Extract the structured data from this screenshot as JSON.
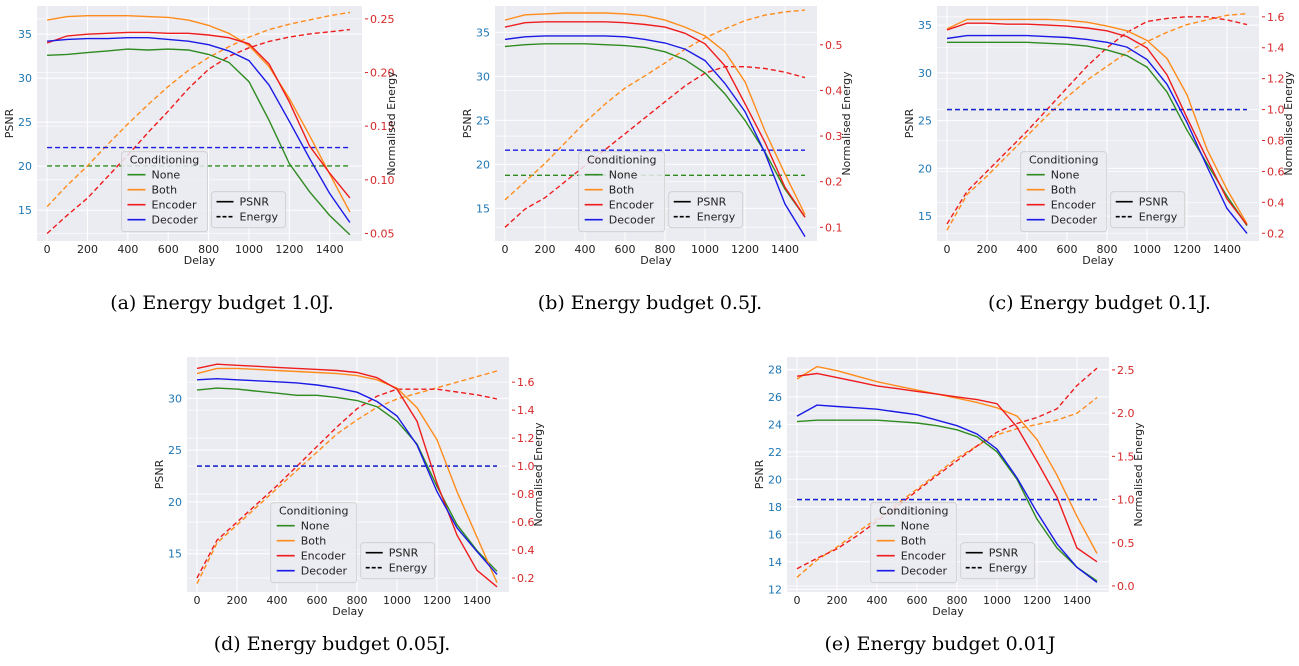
{
  "colors": {
    "None": "#2e8b20",
    "Both": "#ff8c1a",
    "Encoder": "#ee1c1c",
    "Decoder": "#1a1ae6",
    "psnr_axis": "#1f77b4",
    "energy_axis": "#d62728",
    "plot_bg": "#ebebf2",
    "grid": "#ffffff"
  },
  "legend": {
    "title": "Conditioning",
    "series": [
      "None",
      "Both",
      "Encoder",
      "Decoder"
    ],
    "styles": [
      "PSNR",
      "Energy"
    ]
  },
  "chart_data": [
    {
      "id": "a",
      "type": "line",
      "caption": "(a) Energy budget 1.0J.",
      "xlabel": "Delay",
      "ylabel": "PSNR",
      "y2label": "Normalised Energy",
      "xlim": [
        -50,
        1560
      ],
      "ylim": [
        11.5,
        38.2
      ],
      "y2lim": [
        0.043,
        0.262
      ],
      "xticks": [
        0,
        200,
        400,
        600,
        800,
        1000,
        1200,
        1400
      ],
      "yticks": [
        15,
        20,
        25,
        30,
        35
      ],
      "y2ticks": [
        0.05,
        0.1,
        0.15,
        0.2,
        0.25
      ],
      "y2ticklabels": [
        "0.05",
        "0.10",
        "0.15",
        "0.20",
        "0.25"
      ],
      "x": [
        0,
        100,
        200,
        300,
        400,
        500,
        600,
        700,
        800,
        900,
        1000,
        1100,
        1200,
        1300,
        1400,
        1500
      ],
      "psnr": {
        "None": [
          32.6,
          32.7,
          32.9,
          33.1,
          33.3,
          33.2,
          33.3,
          33.2,
          32.7,
          31.8,
          29.6,
          25.2,
          20.3,
          17.1,
          14.4,
          12.2
        ],
        "Both": [
          36.6,
          37.0,
          37.1,
          37.1,
          37.1,
          37.0,
          36.9,
          36.6,
          36.0,
          35.1,
          33.7,
          31.3,
          27.7,
          23.5,
          19.1,
          14.8
        ],
        "Encoder": [
          34.0,
          34.8,
          35.0,
          35.1,
          35.2,
          35.2,
          35.1,
          35.1,
          34.9,
          34.6,
          33.9,
          31.6,
          27.3,
          22.3,
          19.2,
          16.4
        ],
        "Decoder": [
          34.2,
          34.4,
          34.5,
          34.5,
          34.6,
          34.6,
          34.4,
          34.2,
          33.8,
          33.1,
          32.0,
          29.2,
          25.1,
          20.9,
          16.9,
          13.6
        ]
      },
      "energy": {
        "None": [
          0.113,
          0.113,
          0.113,
          0.113,
          0.113,
          0.113,
          0.113,
          0.113,
          0.113,
          0.113,
          0.113,
          0.113,
          0.113,
          0.113,
          0.113,
          0.113
        ],
        "Both": [
          0.075,
          0.095,
          0.113,
          0.133,
          0.152,
          0.17,
          0.187,
          0.202,
          0.214,
          0.224,
          0.233,
          0.24,
          0.245,
          0.249,
          0.253,
          0.256
        ],
        "Encoder": [
          0.05,
          0.067,
          0.083,
          0.103,
          0.123,
          0.144,
          0.164,
          0.185,
          0.203,
          0.215,
          0.223,
          0.229,
          0.233,
          0.236,
          0.238,
          0.24
        ],
        "Decoder": [
          0.13,
          0.13,
          0.13,
          0.13,
          0.13,
          0.13,
          0.13,
          0.13,
          0.13,
          0.13,
          0.13,
          0.13,
          0.13,
          0.13,
          0.13,
          0.13
        ]
      }
    },
    {
      "id": "b",
      "type": "line",
      "caption": "(b) Energy budget 0.5J.",
      "xlabel": "Delay",
      "ylabel": "PSNR",
      "y2label": "Normalised Energy",
      "xlim": [
        -50,
        1560
      ],
      "ylim": [
        11.3,
        38.0
      ],
      "y2lim": [
        0.07,
        0.585
      ],
      "xticks": [
        0,
        200,
        400,
        600,
        800,
        1000,
        1200,
        1400
      ],
      "yticks": [
        15,
        20,
        25,
        30,
        35
      ],
      "y2ticks": [
        0.1,
        0.2,
        0.3,
        0.4,
        0.5
      ],
      "y2ticklabels": [
        "0.1",
        "0.2",
        "0.3",
        "0.4",
        "0.5"
      ],
      "x": [
        0,
        100,
        200,
        300,
        400,
        500,
        600,
        700,
        800,
        900,
        1000,
        1100,
        1200,
        1300,
        1400,
        1500
      ],
      "psnr": {
        "None": [
          33.4,
          33.6,
          33.7,
          33.7,
          33.7,
          33.6,
          33.5,
          33.3,
          32.8,
          31.9,
          30.4,
          28.0,
          25.0,
          21.4,
          17.2,
          14.0
        ],
        "Both": [
          36.4,
          37.0,
          37.1,
          37.2,
          37.2,
          37.2,
          37.1,
          36.9,
          36.4,
          35.6,
          34.6,
          32.8,
          29.4,
          23.8,
          18.9,
          14.3
        ],
        "Encoder": [
          35.6,
          36.1,
          36.2,
          36.2,
          36.2,
          36.2,
          36.1,
          35.9,
          35.6,
          34.9,
          33.7,
          31.2,
          26.9,
          22.5,
          17.4,
          14.0
        ],
        "Decoder": [
          34.2,
          34.5,
          34.6,
          34.6,
          34.6,
          34.6,
          34.5,
          34.2,
          33.8,
          33.1,
          31.8,
          29.2,
          26.0,
          21.3,
          15.5,
          11.8
        ]
      },
      "energy": {
        "None": [
          0.214,
          0.214,
          0.214,
          0.214,
          0.214,
          0.214,
          0.214,
          0.214,
          0.214,
          0.214,
          0.214,
          0.214,
          0.214,
          0.214,
          0.214,
          0.214
        ],
        "Both": [
          0.16,
          0.2,
          0.24,
          0.285,
          0.33,
          0.37,
          0.405,
          0.432,
          0.46,
          0.49,
          0.515,
          0.535,
          0.553,
          0.565,
          0.572,
          0.576
        ],
        "Encoder": [
          0.1,
          0.14,
          0.165,
          0.2,
          0.235,
          0.27,
          0.305,
          0.34,
          0.375,
          0.41,
          0.438,
          0.452,
          0.452,
          0.448,
          0.44,
          0.428
        ],
        "Decoder": [
          0.269,
          0.269,
          0.269,
          0.269,
          0.269,
          0.269,
          0.269,
          0.269,
          0.269,
          0.269,
          0.269,
          0.269,
          0.269,
          0.269,
          0.269,
          0.269
        ]
      }
    },
    {
      "id": "c",
      "type": "line",
      "caption": "(c) Energy budget 0.1J.",
      "xlabel": "Delay",
      "ylabel": "PSNR",
      "y2label": "Normalised Energy",
      "xlim": [
        -50,
        1560
      ],
      "ylim": [
        12.4,
        37.0
      ],
      "y2lim": [
        0.15,
        1.67
      ],
      "xticks": [
        0,
        200,
        400,
        600,
        800,
        1000,
        1200,
        1400
      ],
      "yticks": [
        15,
        20,
        25,
        30,
        35
      ],
      "y2ticks": [
        0.2,
        0.4,
        0.6,
        0.8,
        1.0,
        1.2,
        1.4,
        1.6
      ],
      "y2ticklabels": [
        "0.2",
        "0.4",
        "0.6",
        "0.8",
        "1.0",
        "1.2",
        "1.4",
        "1.6"
      ],
      "x": [
        0,
        100,
        200,
        300,
        400,
        500,
        600,
        700,
        800,
        900,
        1000,
        1100,
        1200,
        1300,
        1400,
        1500
      ],
      "psnr": {
        "None": [
          33.2,
          33.2,
          33.2,
          33.2,
          33.2,
          33.1,
          33.0,
          32.8,
          32.4,
          31.8,
          30.6,
          28.0,
          24.0,
          20.5,
          17.1,
          14.0
        ],
        "Both": [
          34.6,
          35.6,
          35.6,
          35.6,
          35.6,
          35.6,
          35.5,
          35.3,
          34.9,
          34.4,
          33.4,
          31.5,
          27.7,
          22.0,
          17.8,
          14.2
        ],
        "Encoder": [
          34.5,
          35.2,
          35.2,
          35.1,
          35.1,
          35.0,
          34.9,
          34.7,
          34.4,
          33.8,
          32.6,
          29.8,
          25.3,
          21.0,
          16.8,
          14.1
        ],
        "Decoder": [
          33.6,
          33.9,
          33.9,
          33.9,
          33.9,
          33.8,
          33.7,
          33.5,
          33.2,
          32.7,
          31.4,
          28.8,
          24.8,
          20.2,
          15.8,
          13.2
        ]
      },
      "energy": {
        "None": [
          1.0,
          1.0,
          1.0,
          1.0,
          1.0,
          1.0,
          1.0,
          1.0,
          1.0,
          1.0,
          1.0,
          1.0,
          1.0,
          1.0,
          1.0,
          1.0
        ],
        "Both": [
          0.22,
          0.45,
          0.57,
          0.7,
          0.83,
          0.96,
          1.08,
          1.19,
          1.28,
          1.37,
          1.44,
          1.5,
          1.55,
          1.58,
          1.61,
          1.62
        ],
        "Encoder": [
          0.26,
          0.47,
          0.6,
          0.73,
          0.86,
          1.0,
          1.14,
          1.28,
          1.4,
          1.5,
          1.57,
          1.59,
          1.6,
          1.6,
          1.58,
          1.55
        ],
        "Decoder": [
          1.0,
          1.0,
          1.0,
          1.0,
          1.0,
          1.0,
          1.0,
          1.0,
          1.0,
          1.0,
          1.0,
          1.0,
          1.0,
          1.0,
          1.0,
          1.0
        ]
      }
    },
    {
      "id": "d",
      "type": "line",
      "caption": "(d) Energy budget 0.05J.",
      "xlabel": "Delay",
      "ylabel": "PSNR",
      "y2label": "Normalised Energy",
      "xlim": [
        -50,
        1560
      ],
      "ylim": [
        11.3,
        34.0
      ],
      "y2lim": [
        0.1,
        1.78
      ],
      "xticks": [
        0,
        200,
        400,
        600,
        800,
        1000,
        1200,
        1400
      ],
      "yticks": [
        15,
        20,
        25,
        30
      ],
      "y2ticks": [
        0.2,
        0.4,
        0.6,
        0.8,
        1.0,
        1.2,
        1.4,
        1.6
      ],
      "y2ticklabels": [
        "0.2",
        "0.4",
        "0.6",
        "0.8",
        "1.0",
        "1.2",
        "1.4",
        "1.6"
      ],
      "x": [
        0,
        100,
        200,
        300,
        400,
        500,
        600,
        700,
        800,
        900,
        1000,
        1100,
        1200,
        1300,
        1400,
        1500
      ],
      "psnr": {
        "None": [
          30.8,
          31.0,
          30.9,
          30.7,
          30.5,
          30.3,
          30.3,
          30.1,
          29.8,
          29.2,
          27.8,
          25.6,
          21.5,
          17.8,
          15.3,
          13.3
        ],
        "Both": [
          32.4,
          32.9,
          32.9,
          32.8,
          32.7,
          32.6,
          32.5,
          32.4,
          32.2,
          31.8,
          31.0,
          29.1,
          26.0,
          21.0,
          16.6,
          12.2
        ],
        "Encoder": [
          32.9,
          33.3,
          33.2,
          33.1,
          33.0,
          32.9,
          32.8,
          32.7,
          32.5,
          32.0,
          30.9,
          27.8,
          21.8,
          16.8,
          13.4,
          11.8
        ],
        "Decoder": [
          31.8,
          31.9,
          31.8,
          31.7,
          31.6,
          31.5,
          31.3,
          31.0,
          30.6,
          29.7,
          28.3,
          25.5,
          21.0,
          17.5,
          15.2,
          13.0
        ]
      },
      "energy": {
        "None": [
          1.0,
          1.0,
          1.0,
          1.0,
          1.0,
          1.0,
          1.0,
          1.0,
          1.0,
          1.0,
          1.0,
          1.0,
          1.0,
          1.0,
          1.0,
          1.0
        ],
        "Both": [
          0.16,
          0.45,
          0.58,
          0.71,
          0.84,
          0.97,
          1.1,
          1.23,
          1.33,
          1.42,
          1.48,
          1.52,
          1.56,
          1.6,
          1.64,
          1.68
        ],
        "Encoder": [
          0.2,
          0.47,
          0.6,
          0.73,
          0.86,
          1.0,
          1.14,
          1.28,
          1.41,
          1.5,
          1.55,
          1.55,
          1.55,
          1.53,
          1.51,
          1.48
        ],
        "Decoder": [
          1.0,
          1.0,
          1.0,
          1.0,
          1.0,
          1.0,
          1.0,
          1.0,
          1.0,
          1.0,
          1.0,
          1.0,
          1.0,
          1.0,
          1.0,
          1.0
        ]
      }
    },
    {
      "id": "e",
      "type": "line",
      "caption": "(e) Energy budget 0.01J",
      "xlabel": "Delay",
      "ylabel": "PSNR",
      "y2label": "Normalised Energy",
      "xlim": [
        -50,
        1560
      ],
      "ylim": [
        11.8,
        28.9
      ],
      "y2lim": [
        -0.07,
        2.65
      ],
      "xticks": [
        0,
        200,
        400,
        600,
        800,
        1000,
        1200,
        1400
      ],
      "yticks": [
        12,
        14,
        16,
        18,
        20,
        22,
        24,
        26,
        28
      ],
      "y2ticks": [
        0.0,
        0.5,
        1.0,
        1.5,
        2.0,
        2.5
      ],
      "y2ticklabels": [
        "0.0",
        "0.5",
        "1.0",
        "1.5",
        "2.0",
        "2.5"
      ],
      "x": [
        0,
        100,
        200,
        300,
        400,
        500,
        600,
        700,
        800,
        900,
        1000,
        1100,
        1200,
        1300,
        1400,
        1500
      ],
      "psnr": {
        "None": [
          24.2,
          24.3,
          24.3,
          24.3,
          24.3,
          24.2,
          24.1,
          23.9,
          23.6,
          23.1,
          22.0,
          20.0,
          17.1,
          15.0,
          13.6,
          12.6
        ],
        "Both": [
          27.3,
          28.2,
          27.9,
          27.5,
          27.1,
          26.8,
          26.5,
          26.2,
          25.9,
          25.6,
          25.2,
          24.6,
          22.9,
          20.3,
          17.3,
          14.6
        ],
        "Encoder": [
          27.5,
          27.7,
          27.4,
          27.1,
          26.8,
          26.6,
          26.4,
          26.2,
          26.0,
          25.8,
          25.5,
          23.8,
          21.3,
          18.7,
          15.0,
          14.0
        ],
        "Decoder": [
          24.6,
          25.4,
          25.3,
          25.2,
          25.1,
          24.9,
          24.7,
          24.3,
          23.9,
          23.3,
          22.2,
          20.1,
          17.6,
          15.3,
          13.6,
          12.5
        ]
      },
      "energy": {
        "None": [
          1.0,
          1.0,
          1.0,
          1.0,
          1.0,
          1.0,
          1.0,
          1.0,
          1.0,
          1.0,
          1.0,
          1.0,
          1.0,
          1.0,
          1.0,
          1.0
        ],
        "Both": [
          0.1,
          0.3,
          0.45,
          0.62,
          0.78,
          0.95,
          1.12,
          1.3,
          1.48,
          1.62,
          1.75,
          1.82,
          1.87,
          1.92,
          2.0,
          2.18
        ],
        "Encoder": [
          0.2,
          0.32,
          0.43,
          0.58,
          0.75,
          0.92,
          1.1,
          1.28,
          1.45,
          1.62,
          1.78,
          1.88,
          1.95,
          2.05,
          2.32,
          2.52
        ],
        "Decoder": [
          1.0,
          1.0,
          1.0,
          1.0,
          1.0,
          1.0,
          1.0,
          1.0,
          1.0,
          1.0,
          1.0,
          1.0,
          1.0,
          1.0,
          1.0,
          1.0
        ]
      }
    }
  ]
}
